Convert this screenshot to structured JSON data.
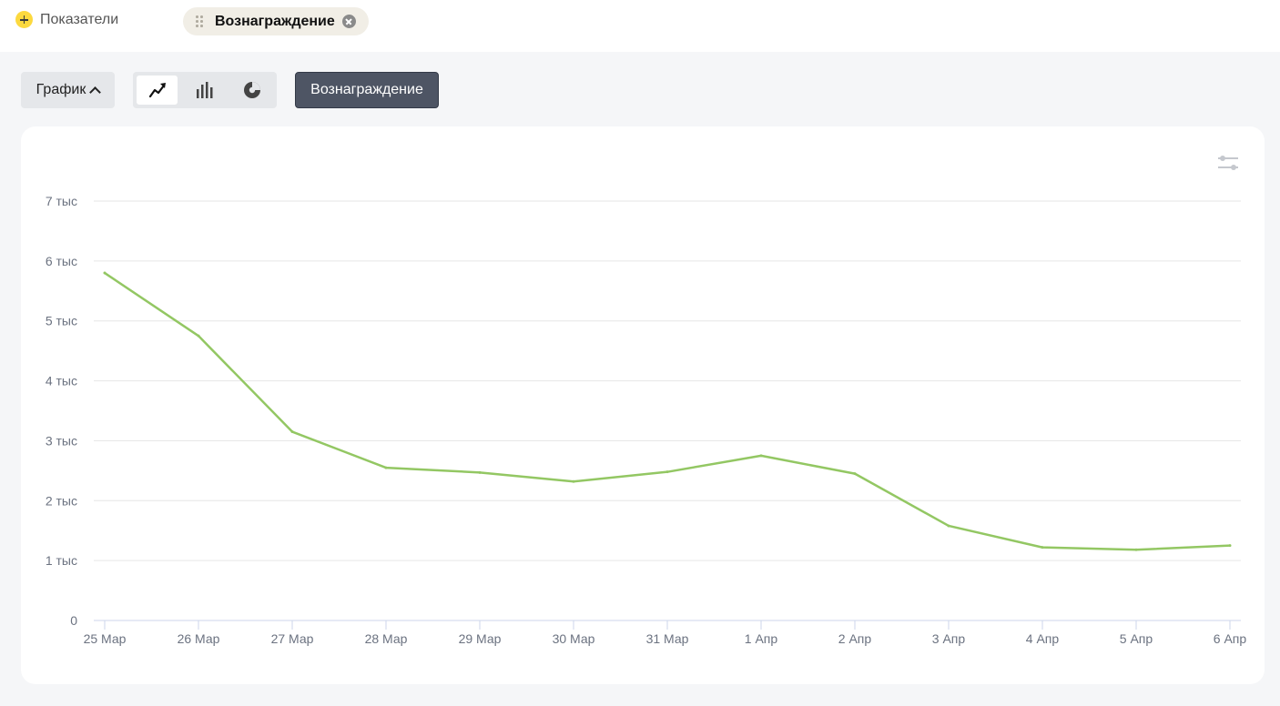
{
  "toolbar": {
    "add_metrics_label": "Показатели",
    "selected_metric_chip": "Вознаграждение",
    "view_dropdown_label": "График",
    "metric_button_label": "Вознаграждение",
    "chart_types": [
      {
        "icon": "line-chart-icon",
        "active": true
      },
      {
        "icon": "bar-chart-icon",
        "active": false
      },
      {
        "icon": "pie-chart-icon",
        "active": false
      }
    ]
  },
  "colors": {
    "line": "#93c763",
    "grid": "#e6e6e6",
    "accent_yellow": "#fcd93f",
    "metric_button_bg": "#4e5564"
  },
  "chart_data": {
    "type": "line",
    "categories": [
      "25 Мар",
      "26 Мар",
      "27 Мар",
      "28 Мар",
      "29 Мар",
      "30 Мар",
      "31 Мар",
      "1 Апр",
      "2 Апр",
      "3 Апр",
      "4 Апр",
      "5 Апр",
      "6 Апр"
    ],
    "series": [
      {
        "values": [
          5800,
          4750,
          3150,
          2550,
          2470,
          2320,
          2480,
          2750,
          2450,
          1580,
          1220,
          1180,
          1250
        ]
      }
    ],
    "ylim": [
      0,
      7000
    ],
    "yticks": [
      0,
      1000,
      2000,
      3000,
      4000,
      5000,
      6000,
      7000
    ],
    "ytick_labels": [
      "0",
      "1 тыс",
      "2 тыс",
      "3 тыс",
      "4 тыс",
      "5 тыс",
      "6 тыс",
      "7 тыс"
    ],
    "grid": true,
    "legend": "none"
  }
}
